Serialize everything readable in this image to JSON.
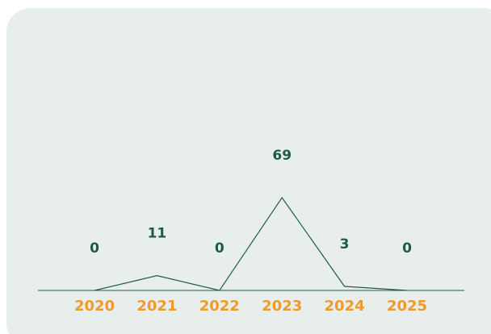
{
  "chart_data": {
    "type": "line",
    "categories": [
      "2020",
      "2021",
      "2022",
      "2023",
      "2024",
      "2025"
    ],
    "values": [
      0,
      11,
      0,
      69,
      3,
      0
    ],
    "color": "#1f5c4a"
  }
}
